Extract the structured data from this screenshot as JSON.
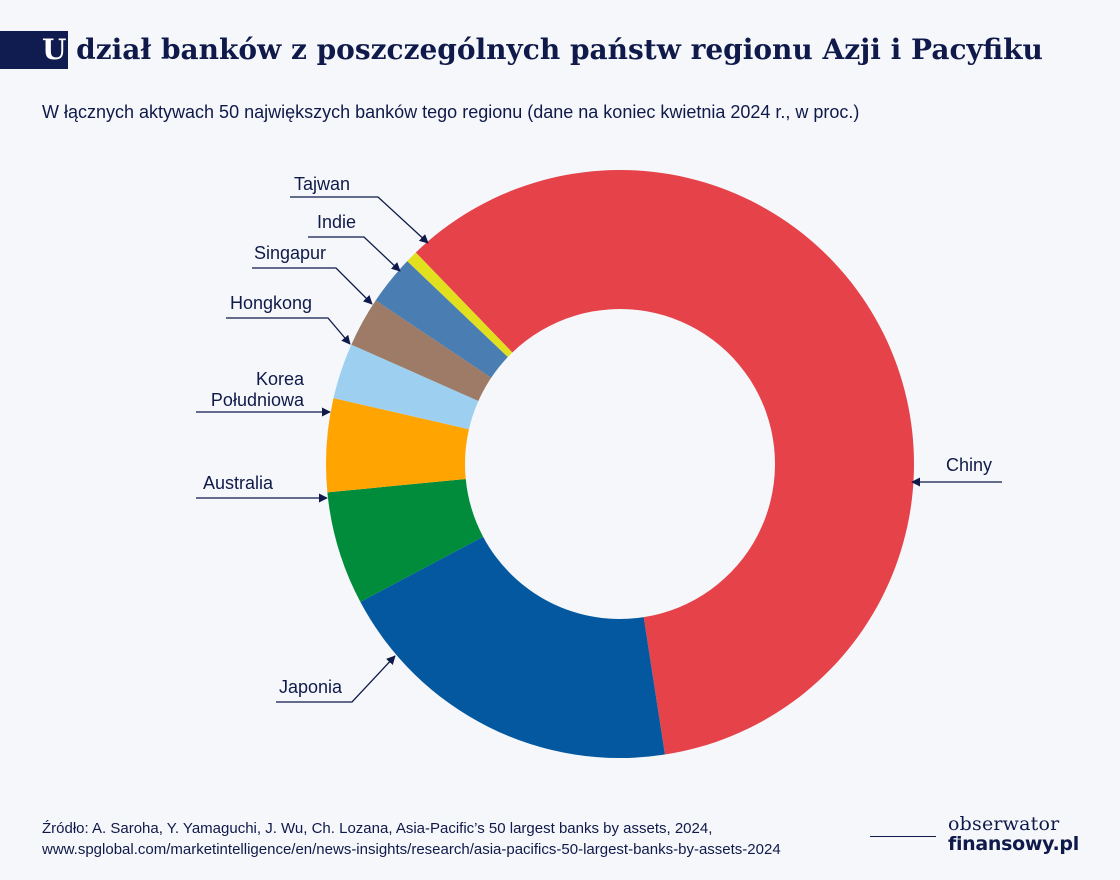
{
  "header": {
    "title_initial": "U",
    "title_rest": " dział banków z poszczególnych państw regionu Azji i Pacyfiku",
    "subtitle": "W łącznych aktywach 50 największych banków tego regionu (dane na koniec kwietnia 2024 r., w proc.)"
  },
  "chart_data": {
    "type": "pie",
    "variant": "donut",
    "title": "Udział banków z poszczególnych państw regionu Azji i Pacyfiku",
    "subtitle": "W łącznych aktywach 50 największych banków tego regionu (dane na koniec kwietnia 2024 r., w proc.)",
    "unit": "%",
    "slices": [
      {
        "label": "Chiny",
        "value": 54.7,
        "color": "#e5424a"
      },
      {
        "label": "Japonia",
        "value": 18.0,
        "color": "#0358a0"
      },
      {
        "label": "Australia",
        "value": 5.7,
        "color": "#008c3a"
      },
      {
        "label": "Korea Południowa",
        "value": 4.7,
        "color": "#ffa400"
      },
      {
        "label": "Hongkong",
        "value": 2.8,
        "color": "#9dd0f0"
      },
      {
        "label": "Singapur",
        "value": 2.5,
        "color": "#9e7b66"
      },
      {
        "label": "Indie",
        "value": 2.5,
        "color": "#4a7db2"
      },
      {
        "label": "Tajwan",
        "value": 0.6,
        "color": "#e2e01e"
      }
    ]
  },
  "labels": {
    "chiny": "Chiny",
    "japonia": "Japonia",
    "australia": "Australia",
    "korea_line1": "Korea",
    "korea_line2": "Południowa",
    "hongkong": "Hongkong",
    "singapur": "Singapur",
    "indie": "Indie",
    "tajwan": "Tajwan"
  },
  "source": {
    "line1": "Źródło: A. Saroha, Y. Yamaguchi, J. Wu, Ch. Lozana, Asia-Pacific’s 50 largest banks by assets, 2024,",
    "line2": "www.spglobal.com/marketintelligence/en/news-insights/research/asia-pacifics-50-largest-banks-by-assets-2024"
  },
  "logo": {
    "line1": "obserwator",
    "line2": "finansowy.pl"
  }
}
